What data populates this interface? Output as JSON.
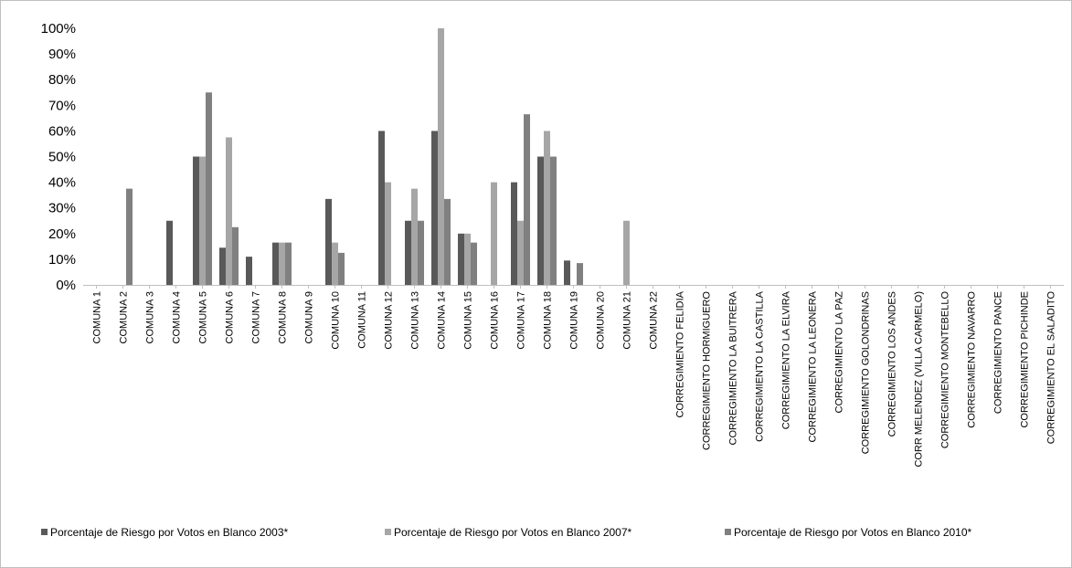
{
  "chart_data": {
    "type": "bar",
    "title": "",
    "xlabel": "",
    "ylabel": "",
    "ylim": [
      0,
      100
    ],
    "y_ticks": [
      "0%",
      "10%",
      "20%",
      "30%",
      "40%",
      "50%",
      "60%",
      "70%",
      "80%",
      "90%",
      "100%"
    ],
    "grid": false,
    "legend_position": "bottom",
    "categories": [
      "COMUNA 1",
      "COMUNA 2",
      "COMUNA 3",
      "COMUNA 4",
      "COMUNA 5",
      "COMUNA 6",
      "COMUNA 7",
      "COMUNA 8",
      "COMUNA 9",
      "COMUNA 10",
      "COMUNA 11",
      "COMUNA 12",
      "COMUNA 13",
      "COMUNA 14",
      "COMUNA 15",
      "COMUNA 16",
      "COMUNA 17",
      "COMUNA 18",
      "COMUNA 19",
      "COMUNA 20",
      "COMUNA 21",
      "COMUNA 22",
      "CORREGIMIENTO FELIDIA",
      "CORREGIMIENTO HORMIGUERO",
      "CORREGIMIENTO LA BUITRERA",
      "CORREGIMIENTO LA CASTILLA",
      "CORREGIMIENTO LA ELVIRA",
      "CORREGIMIENTO LA LEONERA",
      "CORREGIMIENTO LA PAZ",
      "CORREGIMIENTO GOLONDRINAS",
      "CORREGIMIENTO LOS ANDES",
      "CORR MELENDEZ (VILLA CARMELO)",
      "CORREGIMIENTO MONTEBELLO",
      "CORREGIMIENTO NAVARRO",
      "CORREGIMIENTO PANCE",
      "CORREGIMIENTO PICHINDE",
      "CORREGIMIENTO EL SALADITO"
    ],
    "series": [
      {
        "name": "Porcentaje de Riesgo por Votos en Blanco 2003*",
        "color": "#595959",
        "values": [
          0,
          0,
          0,
          25,
          50,
          14.5,
          11,
          16.5,
          0,
          33.5,
          0,
          60,
          25,
          60,
          20,
          0,
          40,
          50,
          9.5,
          0,
          0,
          0,
          0,
          0,
          0,
          0,
          0,
          0,
          0,
          0,
          0,
          0,
          0,
          0,
          0,
          0,
          0
        ]
      },
      {
        "name": "Porcentaje de Riesgo por Votos en Blanco 2007*",
        "color": "#a6a6a6",
        "values": [
          0,
          0,
          0,
          0,
          50,
          57.5,
          0,
          16.5,
          0,
          16.5,
          0,
          40,
          37.5,
          100,
          20,
          40,
          25,
          60,
          0,
          0,
          25,
          0,
          0,
          0,
          0,
          0,
          0,
          0,
          0,
          0,
          0,
          0,
          0,
          0,
          0,
          0,
          0
        ]
      },
      {
        "name": "Porcentaje de Riesgo por Votos en Blanco 2010*",
        "color": "#808080",
        "values": [
          0,
          37.5,
          0,
          0,
          75,
          22.5,
          0,
          16.5,
          0,
          12.5,
          0,
          0,
          25,
          33.5,
          16.5,
          0,
          66.5,
          50,
          8.5,
          0,
          0,
          0,
          0,
          0,
          0,
          0,
          0,
          0,
          0,
          0,
          0,
          0,
          0,
          0,
          0,
          0,
          0
        ]
      }
    ]
  }
}
